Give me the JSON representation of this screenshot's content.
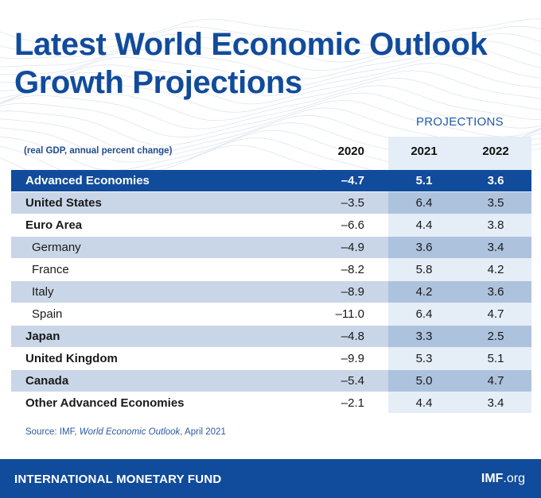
{
  "title_line1": "Latest World Economic Outlook",
  "title_line2": "Growth Projections",
  "projections_label": "PROJECTIONS",
  "subtitle": "(real GDP, annual percent change)",
  "years": [
    "2020",
    "2021",
    "2022"
  ],
  "rows": [
    {
      "name": "Advanced Economies",
      "v2020": "–4.7",
      "v2021": "5.1",
      "v2022": "3.6"
    },
    {
      "name": "United States",
      "v2020": "–3.5",
      "v2021": "6.4",
      "v2022": "3.5"
    },
    {
      "name": "Euro Area",
      "v2020": "–6.6",
      "v2021": "4.4",
      "v2022": "3.8"
    },
    {
      "name": "Germany",
      "v2020": "–4.9",
      "v2021": "3.6",
      "v2022": "3.4"
    },
    {
      "name": "France",
      "v2020": "–8.2",
      "v2021": "5.8",
      "v2022": "4.2"
    },
    {
      "name": "Italy",
      "v2020": "–8.9",
      "v2021": "4.2",
      "v2022": "3.6"
    },
    {
      "name": "Spain",
      "v2020": "–11.0",
      "v2021": "6.4",
      "v2022": "4.7"
    },
    {
      "name": "Japan",
      "v2020": "–4.8",
      "v2021": "3.3",
      "v2022": "2.5"
    },
    {
      "name": "United Kingdom",
      "v2020": "–9.9",
      "v2021": "5.3",
      "v2022": "5.1"
    },
    {
      "name": "Canada",
      "v2020": "–5.4",
      "v2021": "5.0",
      "v2022": "4.7"
    },
    {
      "name": "Other Advanced Economies",
      "v2020": "–2.1",
      "v2021": "4.4",
      "v2022": "3.4"
    }
  ],
  "source": {
    "prefix": "Source: IMF, ",
    "italic": "World Economic Outlook",
    "suffix": ", April 2021"
  },
  "footer": {
    "org": "INTERNATIONAL MONETARY FUND",
    "site_bold": "IMF",
    "site_rest": ".org"
  },
  "colors": {
    "brand_blue": "#114b9b",
    "row_shade": "#c9d6e8",
    "projection_shade": "#e5eef7"
  }
}
